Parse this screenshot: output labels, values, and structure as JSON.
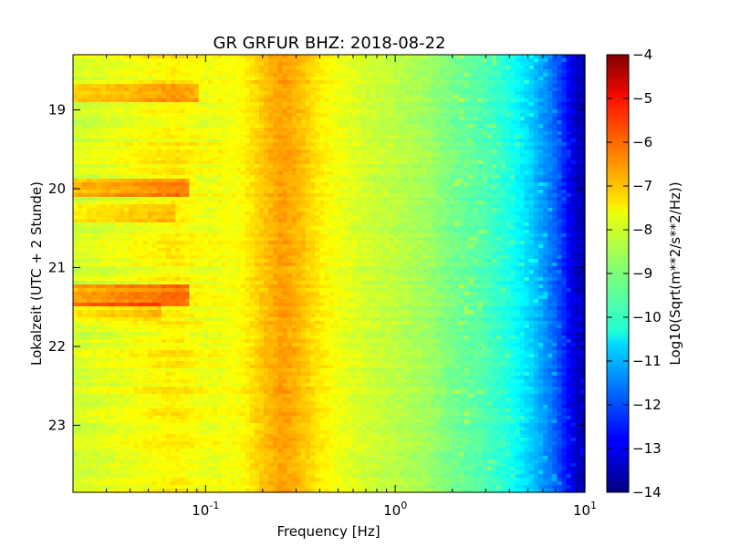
{
  "chart_data": {
    "type": "heatmap",
    "title": "GR GRFUR BHZ: 2018-08-22",
    "xlabel": "Frequency [Hz]",
    "ylabel": "Lokalzeit (UTC + 2 Stunde)",
    "x_scale": "log",
    "xlim": [
      0.02,
      10
    ],
    "x_ticks": [
      {
        "value": 0.1,
        "base": "10",
        "exp": "-1"
      },
      {
        "value": 1,
        "base": "10",
        "exp": "0"
      },
      {
        "value": 10,
        "base": "10",
        "exp": "1"
      }
    ],
    "ylim": [
      18.3,
      23.85
    ],
    "y_inverted": true,
    "y_ticks": [
      {
        "value": 19,
        "label": "19"
      },
      {
        "value": 20,
        "label": "20"
      },
      {
        "value": 21,
        "label": "21"
      },
      {
        "value": 22,
        "label": "22"
      },
      {
        "value": 23,
        "label": "23"
      }
    ],
    "colormap": "jet",
    "colorbar": {
      "label": "Log10(Sqrt(m**2/s**2/Hz))",
      "min": -14,
      "max": -4,
      "ticks": [
        {
          "value": -4,
          "label": "−4"
        },
        {
          "value": -5,
          "label": "−5"
        },
        {
          "value": -6,
          "label": "−6"
        },
        {
          "value": -7,
          "label": "−7"
        },
        {
          "value": -8,
          "label": "−8"
        },
        {
          "value": -9,
          "label": "−9"
        },
        {
          "value": -10,
          "label": "−10"
        },
        {
          "value": -11,
          "label": "−11"
        },
        {
          "value": -12,
          "label": "−12"
        },
        {
          "value": -13,
          "label": "−13"
        },
        {
          "value": -14,
          "label": "−14"
        }
      ]
    },
    "spectrum_profile": {
      "frequency_hz": [
        0.02,
        0.04,
        0.07,
        0.1,
        0.15,
        0.2,
        0.25,
        0.3,
        0.4,
        0.5,
        0.7,
        1,
        1.5,
        2,
        3,
        4,
        5,
        6,
        7,
        8,
        9,
        10
      ],
      "level": [
        -8.2,
        -7.9,
        -7.6,
        -7.9,
        -7.8,
        -7.2,
        -6.8,
        -7.0,
        -7.6,
        -7.9,
        -8.2,
        -8.4,
        -8.7,
        -9.1,
        -9.5,
        -10.0,
        -10.6,
        -11.2,
        -11.8,
        -12.6,
        -13.3,
        -13.6
      ]
    },
    "time_events": [
      {
        "hour": 18.8,
        "hz_max": 0.09,
        "delta": 0.9
      },
      {
        "hour": 20.0,
        "hz_max": 0.08,
        "delta": 1.1
      },
      {
        "hour": 20.3,
        "hz_max": 0.07,
        "delta": 0.6
      },
      {
        "hour": 21.35,
        "hz_max": 0.08,
        "delta": 1.2
      },
      {
        "hour": 21.55,
        "hz_max": 0.06,
        "delta": 0.6
      }
    ]
  }
}
